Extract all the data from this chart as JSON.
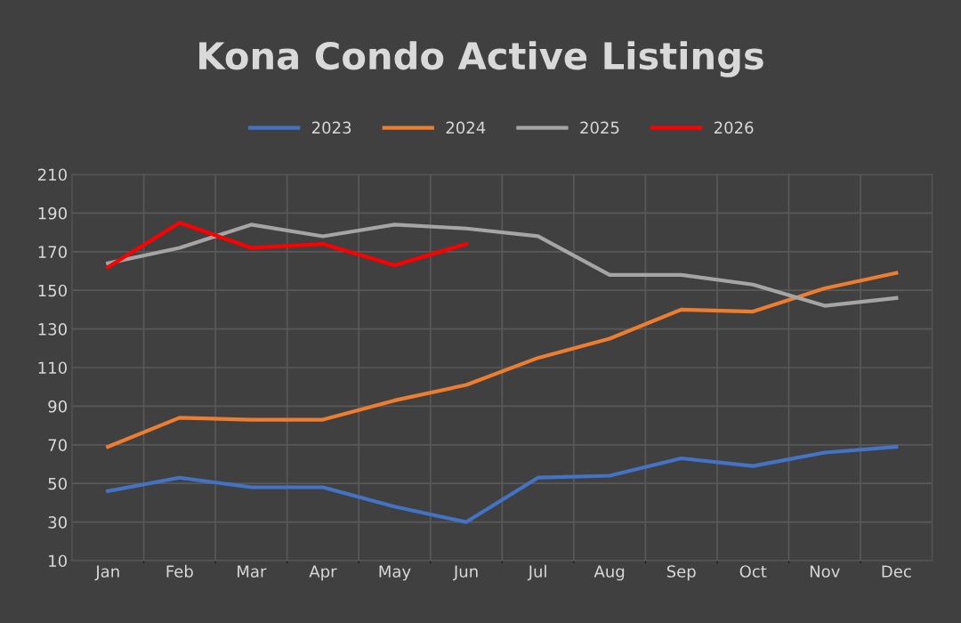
{
  "chart_data": {
    "type": "line",
    "title": "Kona Condo Active Listings",
    "categories": [
      "Jan",
      "Feb",
      "Mar",
      "Apr",
      "May",
      "Jun",
      "Jul",
      "Aug",
      "Sep",
      "Oct",
      "Nov",
      "Dec"
    ],
    "series": [
      {
        "name": "2023",
        "color": "#4472c4",
        "values": [
          46,
          53,
          48,
          48,
          38,
          30,
          53,
          54,
          63,
          59,
          66,
          69
        ]
      },
      {
        "name": "2024",
        "color": "#ed7d31",
        "values": [
          69,
          84,
          83,
          83,
          93,
          101,
          115,
          125,
          140,
          139,
          151,
          159
        ]
      },
      {
        "name": "2025",
        "color": "#a5a5a5",
        "values": [
          164,
          172,
          184,
          178,
          184,
          182,
          178,
          158,
          158,
          153,
          142,
          146
        ]
      },
      {
        "name": "2026",
        "color": "#ff0000",
        "values": [
          162,
          185,
          172,
          174,
          163,
          174,
          null,
          null,
          null,
          null,
          null,
          null
        ]
      }
    ],
    "ylim": [
      10,
      210
    ],
    "yticks": [
      10,
      30,
      50,
      70,
      90,
      110,
      130,
      150,
      170,
      190,
      210
    ],
    "grid": true,
    "legend": "top",
    "marker": "none",
    "line_style": "solid"
  }
}
